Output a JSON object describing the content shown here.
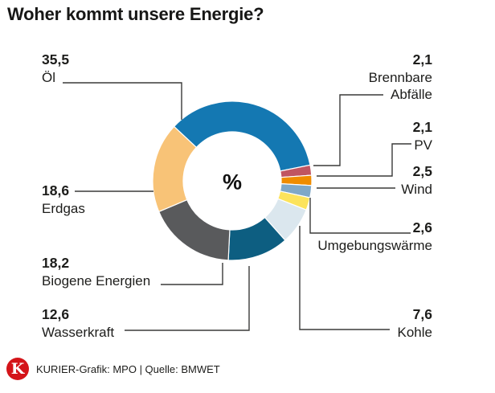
{
  "title": "Woher kommt unsere Energie?",
  "chart_data": {
    "type": "pie",
    "subtype": "donut",
    "title": "Woher kommt unsere Energie?",
    "unit": "%",
    "center_label": "%",
    "start_angle_deg": -47,
    "legend_position": "callout-labels",
    "slices": [
      {
        "label": "Öl",
        "value": 35.5,
        "value_text": "35,5",
        "color": "#1478b2"
      },
      {
        "label": "Brennbare Abfälle",
        "value": 2.1,
        "value_text": "2,1",
        "color": "#c05561"
      },
      {
        "label": "PV",
        "value": 2.1,
        "value_text": "2,1",
        "color": "#ef8c00"
      },
      {
        "label": "Wind",
        "value": 2.5,
        "value_text": "2,5",
        "color": "#7fa8c8"
      },
      {
        "label": "Umgebungswärme",
        "value": 2.6,
        "value_text": "2,6",
        "color": "#fce35c"
      },
      {
        "label": "Kohle",
        "value": 7.6,
        "value_text": "7,6",
        "color": "#dbe7ee"
      },
      {
        "label": "Wasserkraft",
        "value": 12.6,
        "value_text": "12,6",
        "color": "#0d5e81"
      },
      {
        "label": "Biogene Energien",
        "value": 18.2,
        "value_text": "18,2",
        "color": "#595a5c"
      },
      {
        "label": "Erdgas",
        "value": 18.6,
        "value_text": "18,6",
        "color": "#f8c377"
      }
    ]
  },
  "footer": {
    "logo_letter": "K",
    "logo_color": "#d41419",
    "credit": "KURIER-Grafik: MPO | Quelle: BMWET"
  }
}
